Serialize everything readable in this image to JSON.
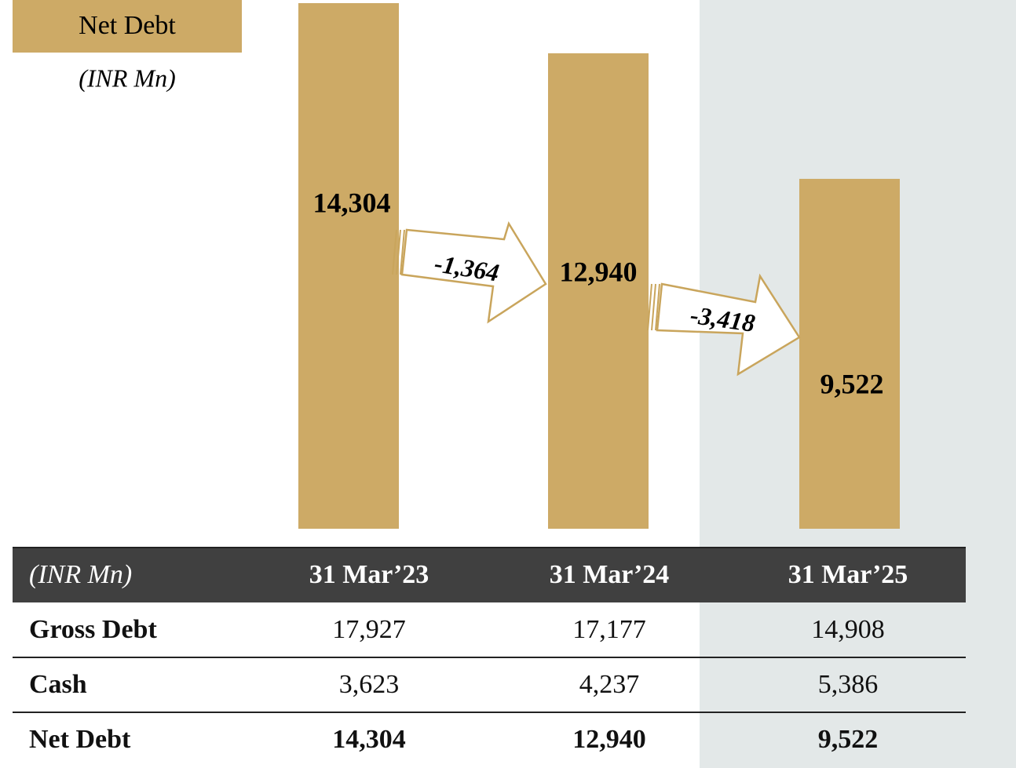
{
  "chart_data": {
    "type": "bar",
    "title": "Net Debt",
    "subtitle": "(INR Mn)",
    "values": [
      14304,
      12940,
      9522
    ],
    "value_labels": [
      "14,304",
      "12,940",
      "9,522"
    ],
    "color": "#cdaa66",
    "changes": [
      -1364,
      -3418
    ],
    "change_labels": [
      "-1,364",
      "-3,418"
    ]
  },
  "table": {
    "header": [
      "(INR Mn)",
      "31 Mar’23",
      "31 Mar’24",
      "31 Mar’25"
    ],
    "rows": [
      [
        "Gross Debt",
        "17,927",
        "17,177",
        "14,908"
      ],
      [
        "Cash",
        "3,623",
        "4,237",
        "5,386"
      ],
      [
        "Net Debt",
        "14,304",
        "12,940",
        "9,522"
      ]
    ]
  }
}
